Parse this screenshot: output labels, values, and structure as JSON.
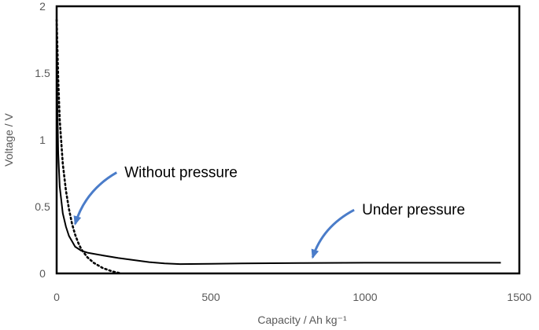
{
  "chart_data": {
    "type": "line",
    "xlabel": "Capacity / Ah kg⁻¹",
    "ylabel": "Voltage / V",
    "xlim": [
      0,
      1500
    ],
    "ylim": [
      0,
      2
    ],
    "xticks": [
      "0",
      "500",
      "1000",
      "1500"
    ],
    "yticks": [
      "0",
      "0.5",
      "1",
      "1.5",
      "2"
    ],
    "grid": false,
    "legend": "none",
    "series": [
      {
        "name": "Under pressure",
        "style": "solid",
        "color": "#000000",
        "x": [
          0,
          2,
          5,
          10,
          20,
          30,
          40,
          60,
          80,
          100,
          150,
          200,
          250,
          300,
          350,
          400,
          500,
          600,
          800,
          1000,
          1200,
          1440
        ],
        "y": [
          1.88,
          1.3,
          0.9,
          0.65,
          0.45,
          0.35,
          0.28,
          0.2,
          0.17,
          0.155,
          0.135,
          0.115,
          0.1,
          0.085,
          0.075,
          0.07,
          0.072,
          0.075,
          0.078,
          0.08,
          0.08,
          0.08
        ]
      },
      {
        "name": "Without pressure",
        "style": "dotted",
        "color": "#000000",
        "x": [
          0,
          5,
          10,
          20,
          30,
          40,
          50,
          60,
          70,
          80,
          100,
          120,
          150,
          180,
          210
        ],
        "y": [
          1.9,
          1.45,
          1.15,
          0.82,
          0.62,
          0.48,
          0.37,
          0.29,
          0.23,
          0.18,
          0.12,
          0.08,
          0.04,
          0.015,
          0.0
        ]
      }
    ],
    "annotations": [
      {
        "text": "Without pressure",
        "x": 220,
        "y": 0.72,
        "arrow_to_x": 60,
        "arrow_to_y": 0.37
      },
      {
        "text": "Under pressure",
        "x": 990,
        "y": 0.44,
        "arrow_to_x": 830,
        "arrow_to_y": 0.12
      }
    ]
  }
}
